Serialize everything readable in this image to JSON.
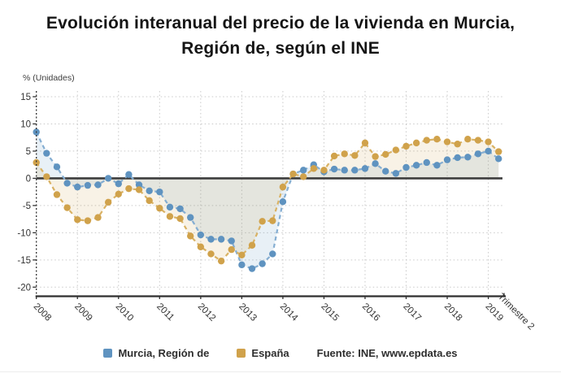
{
  "title": {
    "line1": "Evolución interanual del precio de la vivienda en Murcia,",
    "line2": "Región de, según el INE"
  },
  "axes": {
    "unit_label": "% (Unidades)",
    "x_axis_title": "Trimestre 2",
    "y_ticks": [
      15,
      10,
      5,
      0,
      -5,
      -10,
      -15,
      -20
    ],
    "x_ticks": [
      "2008",
      "2009",
      "2010",
      "2011",
      "2012",
      "2013",
      "2014",
      "2015",
      "2016",
      "2017",
      "2018",
      "2019"
    ]
  },
  "legend": {
    "series1": "Murcia, Región de",
    "series2": "España",
    "source": "Fuente: INE, www.epdata.es"
  },
  "colors": {
    "murcia_dot": "#5f93c0",
    "murcia_line": "#85aed2",
    "murcia_fill": "rgba(95,147,192,0.14)",
    "espana_dot": "#d0a24b",
    "espana_line": "#d9b264",
    "espana_fill": "rgba(208,162,75,0.14)",
    "zero_line": "#3d3d3d",
    "grid": "#c9c9c9",
    "axis": "#333333",
    "tick_text": "#333333"
  },
  "chart_data": {
    "type": "line",
    "title": "Evolución interanual del precio de la vivienda en Murcia, Región de, según el INE",
    "xlabel": "Trimestre",
    "ylabel": "% (Unidades)",
    "ylim": [
      -20,
      15
    ],
    "grid": true,
    "legend_position": "bottom",
    "x": [
      "2008T1",
      "2008T2",
      "2008T3",
      "2008T4",
      "2009T1",
      "2009T2",
      "2009T3",
      "2009T4",
      "2010T1",
      "2010T2",
      "2010T3",
      "2010T4",
      "2011T1",
      "2011T2",
      "2011T3",
      "2011T4",
      "2012T1",
      "2012T2",
      "2012T3",
      "2012T4",
      "2013T1",
      "2013T2",
      "2013T3",
      "2013T4",
      "2014T1",
      "2014T2",
      "2014T3",
      "2014T4",
      "2015T1",
      "2015T2",
      "2015T3",
      "2015T4",
      "2016T1",
      "2016T2",
      "2016T3",
      "2016T4",
      "2017T1",
      "2017T2",
      "2017T3",
      "2017T4",
      "2018T1",
      "2018T2",
      "2018T3",
      "2018T4",
      "2019T1",
      "2019T2"
    ],
    "series": [
      {
        "name": "Murcia, Región de",
        "color": "#5f93c0",
        "values": [
          8.5,
          4.6,
          2.1,
          -0.9,
          -1.6,
          -1.3,
          -1.2,
          0.0,
          -1.0,
          0.7,
          -1.2,
          -2.3,
          -2.5,
          -5.3,
          -5.6,
          -7.2,
          -10.4,
          -11.2,
          -11.2,
          -11.5,
          -15.9,
          -16.6,
          -15.7,
          -13.9,
          -4.3,
          0.8,
          1.5,
          2.5,
          1.2,
          1.7,
          1.5,
          1.5,
          1.8,
          2.7,
          1.3,
          0.9,
          2.0,
          2.4,
          2.9,
          2.4,
          3.4,
          3.8,
          3.9,
          4.5,
          5.0,
          3.6
        ]
      },
      {
        "name": "España",
        "color": "#d0a24b",
        "values": [
          2.9,
          0.3,
          -3.0,
          -5.4,
          -7.6,
          -7.8,
          -7.2,
          -4.4,
          -2.9,
          -1.9,
          -2.1,
          -4.1,
          -5.5,
          -7.0,
          -7.4,
          -10.6,
          -12.6,
          -13.9,
          -15.2,
          -13.1,
          -14.1,
          -12.3,
          -7.9,
          -7.8,
          -1.6,
          0.8,
          0.3,
          1.8,
          1.5,
          4.1,
          4.5,
          4.2,
          6.5,
          4.0,
          4.4,
          5.2,
          5.9,
          6.5,
          7.0,
          7.2,
          6.7,
          6.3,
          7.2,
          7.0,
          6.7,
          4.9
        ]
      }
    ]
  }
}
